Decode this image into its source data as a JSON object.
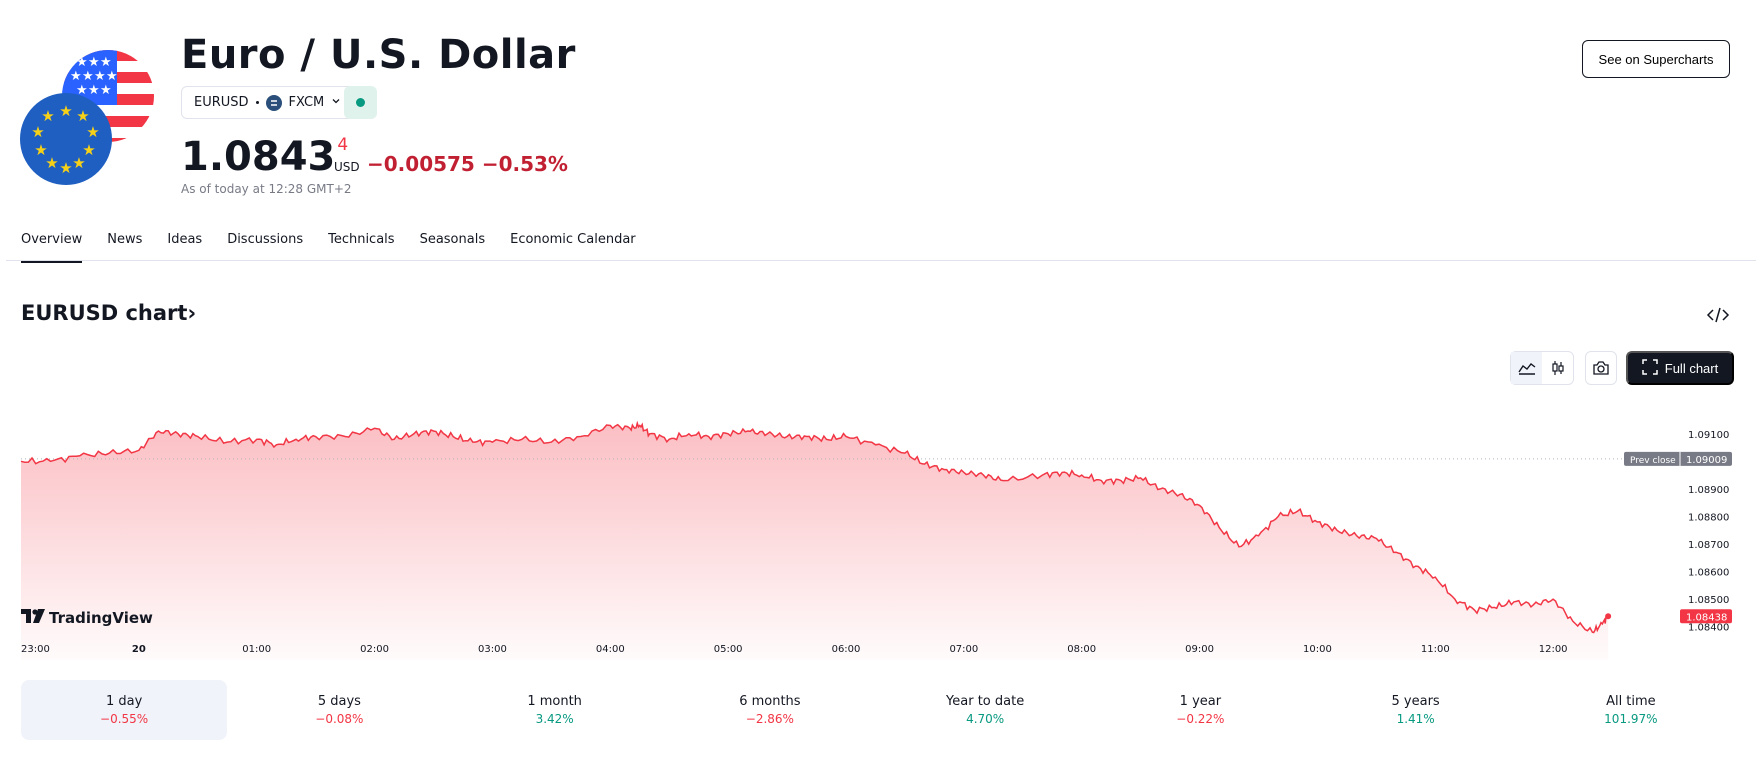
{
  "header": {
    "title": "Euro / U.S. Dollar",
    "symbol": "EURUSD",
    "exchange": "FXCM",
    "market_status_color": "#089981",
    "super_button": "See on Supercharts"
  },
  "quote": {
    "price_main": "1.0843",
    "price_last_digit": "4",
    "currency": "USD",
    "change": "−0.00575 −0.53%",
    "as_of": "As of today at 12:28 GMT+2"
  },
  "tabs": [
    "Overview",
    "News",
    "Ideas",
    "Discussions",
    "Technicals",
    "Seasonals",
    "Economic Calendar"
  ],
  "active_tab": "Overview",
  "chart_section": {
    "heading": "EURUSD chart",
    "heading_arrow": "›",
    "full_chart_label": "Full chart",
    "logo_text": "TradingView",
    "icons": [
      "code-embed-icon",
      "area-chart-icon",
      "candles-icon",
      "camera-icon",
      "fullscreen-icon"
    ]
  },
  "chart_data": {
    "type": "area",
    "title": "",
    "x_ticks": [
      "23:00",
      "20",
      "01:00",
      "02:00",
      "03:00",
      "04:00",
      "05:00",
      "06:00",
      "07:00",
      "08:00",
      "09:00",
      "10:00",
      "11:00",
      "12:00"
    ],
    "y_ticks": [
      "1.09100",
      "1.09000",
      "1.08900",
      "1.08800",
      "1.08700",
      "1.08600",
      "1.08500",
      "1.08400"
    ],
    "ylim": [
      1.0837,
      1.0915
    ],
    "prev_close": {
      "label": "Prev close",
      "value": "1.09009"
    },
    "last_price": {
      "value": "1.08438"
    },
    "line_color": "#f23645",
    "series": [
      {
        "x": [
          "23:00",
          "23:15",
          "23:30",
          "23:45",
          "00:00",
          "00:10",
          "00:20",
          "00:30",
          "00:45",
          "01:00",
          "01:10",
          "01:20",
          "01:30",
          "01:45",
          "02:00",
          "02:10",
          "02:20",
          "02:30",
          "02:40",
          "02:50",
          "03:00",
          "03:15",
          "03:30",
          "03:45",
          "04:00",
          "04:10",
          "04:15",
          "04:20",
          "04:30",
          "04:40",
          "04:50",
          "05:00",
          "05:10",
          "05:20",
          "05:30",
          "05:40",
          "05:50",
          "06:00",
          "06:15",
          "06:30",
          "06:40",
          "06:50",
          "07:00",
          "07:10",
          "07:20",
          "07:40",
          "07:50",
          "08:00",
          "08:10",
          "08:20",
          "08:30",
          "08:40",
          "08:50",
          "09:00",
          "09:10",
          "09:20",
          "09:30",
          "09:40",
          "09:50",
          "10:00",
          "10:10",
          "10:20",
          "10:30",
          "10:40",
          "10:50",
          "11:00",
          "11:10",
          "11:20",
          "11:30",
          "11:40",
          "11:50",
          "12:00",
          "12:10",
          "12:20",
          "12:25",
          "12:28"
        ],
        "y": [
          1.09,
          1.09,
          1.0902,
          1.0903,
          1.0904,
          1.0911,
          1.091,
          1.0909,
          1.0907,
          1.0908,
          1.0906,
          1.0908,
          1.0909,
          1.0909,
          1.0912,
          1.0908,
          1.091,
          1.0911,
          1.0909,
          1.0907,
          1.0907,
          1.0908,
          1.0907,
          1.0909,
          1.0913,
          1.0912,
          1.0913,
          1.091,
          1.0908,
          1.091,
          1.0909,
          1.091,
          1.0911,
          1.091,
          1.0909,
          1.0909,
          1.0908,
          1.0909,
          1.0906,
          1.0903,
          1.0899,
          1.0897,
          1.0896,
          1.0895,
          1.0893,
          1.0895,
          1.0896,
          1.0895,
          1.0893,
          1.0893,
          1.0894,
          1.089,
          1.0888,
          1.0884,
          1.0876,
          1.0869,
          1.0873,
          1.088,
          1.0882,
          1.0878,
          1.0875,
          1.0873,
          1.0872,
          1.0867,
          1.0862,
          1.0858,
          1.085,
          1.0846,
          1.0847,
          1.0849,
          1.0848,
          1.085,
          1.0842,
          1.0838,
          1.0841,
          1.08438
        ]
      }
    ]
  },
  "performance": [
    {
      "label": "1 day",
      "value": "−0.55%",
      "trend": "neg"
    },
    {
      "label": "5 days",
      "value": "−0.08%",
      "trend": "neg"
    },
    {
      "label": "1 month",
      "value": "3.42%",
      "trend": "pos"
    },
    {
      "label": "6 months",
      "value": "−2.86%",
      "trend": "neg"
    },
    {
      "label": "Year to date",
      "value": "4.70%",
      "trend": "pos"
    },
    {
      "label": "1 year",
      "value": "−0.22%",
      "trend": "neg"
    },
    {
      "label": "5 years",
      "value": "1.41%",
      "trend": "pos"
    },
    {
      "label": "All time",
      "value": "101.97%",
      "trend": "pos"
    }
  ]
}
